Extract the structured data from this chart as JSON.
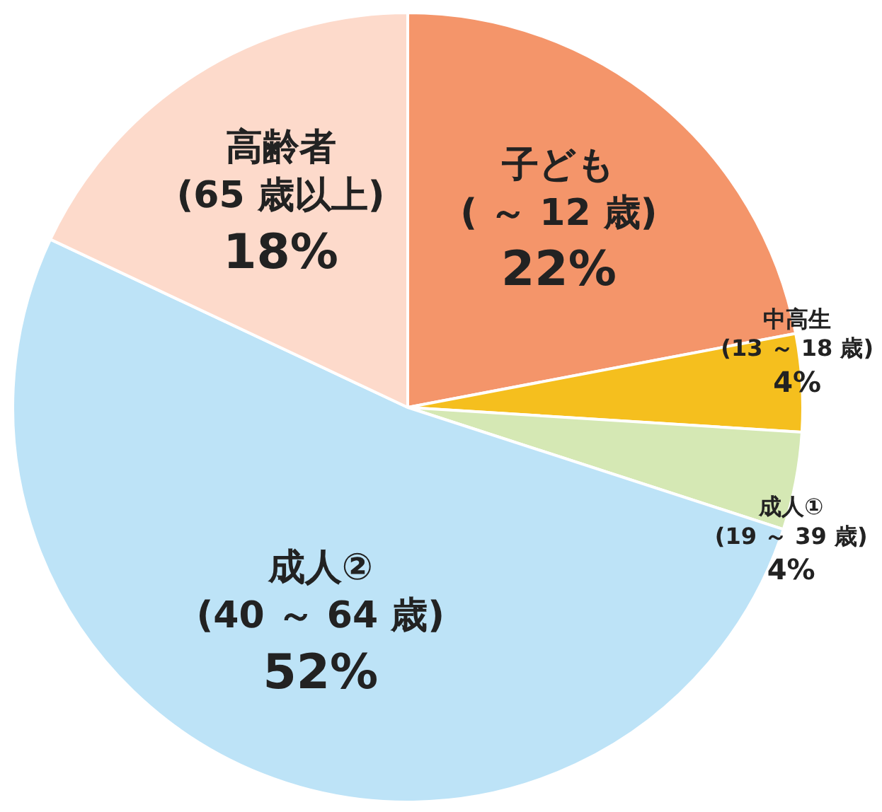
{
  "chart_data": {
    "type": "pie",
    "categories": [
      "子ども\n( ～ 12 歳)",
      "中高生\n(13 ～ 18 歳)",
      "成人①\n(19 ～ 39 歳)",
      "成人②\n(40 ～ 64 歳)",
      "高齢者\n(65 歳以上)"
    ],
    "values": [
      22,
      4,
      4,
      52,
      18
    ],
    "value_labels": [
      "22%",
      "4%",
      "4%",
      "52%",
      "18%"
    ],
    "colors": [
      "#f4956a",
      "#f5bf1e",
      "#d5e8b4",
      "#bde3f7",
      "#fddacb"
    ],
    "legend": false
  }
}
